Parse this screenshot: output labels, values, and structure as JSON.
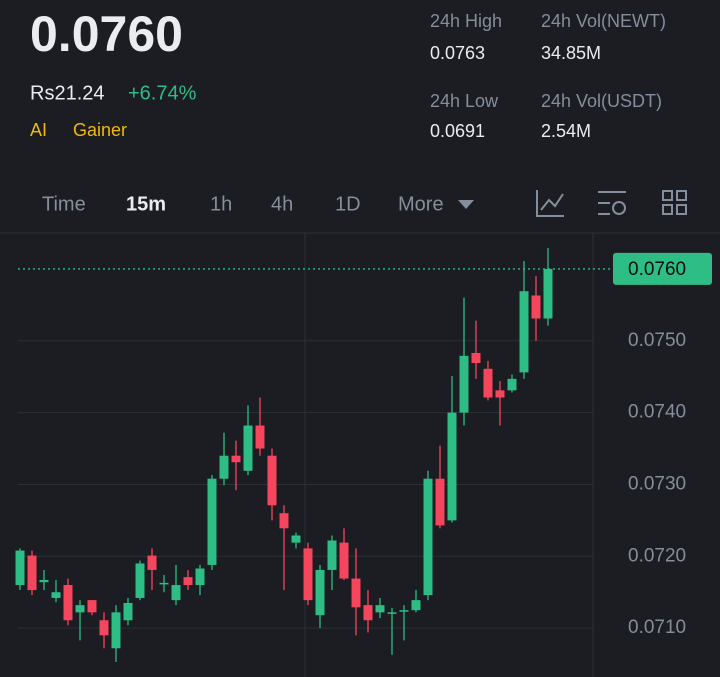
{
  "header": {
    "price": "0.0760",
    "fiat_price": "Rs21.24",
    "change": "+6.74%",
    "tags": [
      "AI",
      "Gainer"
    ],
    "stats": [
      {
        "label": "24h High",
        "value": "0.0763"
      },
      {
        "label": "24h Vol(NEWT)",
        "value": "34.85M"
      },
      {
        "label": "24h Low",
        "value": "0.0691"
      },
      {
        "label": "24h Vol(USDT)",
        "value": "2.54M"
      }
    ]
  },
  "toolbar": {
    "intervals": [
      "Time",
      "15m",
      "1h",
      "4h",
      "1D",
      "More"
    ],
    "active": "15m"
  },
  "chart_data": {
    "type": "candlestick",
    "up_color": "#2ebd85",
    "down_color": "#f6465d",
    "ylim": [
      0.07032,
      0.0765
    ],
    "yticks": [
      {
        "value": 0.075,
        "label": "0.0750"
      },
      {
        "value": 0.074,
        "label": "0.0740"
      },
      {
        "value": 0.073,
        "label": "0.0730"
      },
      {
        "value": 0.072,
        "label": "0.0720"
      },
      {
        "value": 0.071,
        "label": "0.0710"
      }
    ],
    "grid": true,
    "current_price": {
      "value": 0.076,
      "label": "0.0760"
    },
    "open": [
      0.0716,
      0.07201,
      0.07164,
      0.07142,
      0.0716,
      0.07122,
      0.07139,
      0.07111,
      0.07072,
      0.07111,
      0.07142,
      0.07201,
      0.07163,
      0.07139,
      0.07171,
      0.0716,
      0.07188,
      0.07308,
      0.0734,
      0.07319,
      0.07382,
      0.0734,
      0.0726,
      0.07219,
      0.07211,
      0.07118,
      0.07181,
      0.07219,
      0.07169,
      0.07132,
      0.07122,
      0.07122,
      0.07125,
      0.07125,
      0.07146,
      0.07308,
      0.0725,
      0.074,
      0.07483,
      0.07461,
      0.07431,
      0.07431,
      0.07456,
      0.07563,
      0.07531
    ],
    "high": [
      0.07211,
      0.07208,
      0.07181,
      0.07167,
      0.07169,
      0.07139,
      0.07139,
      0.07122,
      0.07132,
      0.07142,
      0.07194,
      0.07211,
      0.07174,
      0.07188,
      0.07181,
      0.07188,
      0.07313,
      0.07372,
      0.07361,
      0.0741,
      0.07421,
      0.0735,
      0.07271,
      0.07233,
      0.07219,
      0.07188,
      0.07229,
      0.07239,
      0.07211,
      0.07153,
      0.07142,
      0.07128,
      0.07132,
      0.07153,
      0.07319,
      0.07354,
      0.07451,
      0.0756,
      0.07528,
      0.07472,
      0.07444,
      0.07453,
      0.07611,
      0.0759,
      0.07629
    ],
    "low": [
      0.07153,
      0.07146,
      0.07153,
      0.07136,
      0.07104,
      0.07083,
      0.07118,
      0.07072,
      0.07053,
      0.07104,
      0.07139,
      0.07153,
      0.0715,
      0.07132,
      0.07153,
      0.07146,
      0.07181,
      0.07299,
      0.07292,
      0.07313,
      0.0734,
      0.0725,
      0.07153,
      0.07211,
      0.07132,
      0.071,
      0.07153,
      0.07167,
      0.0709,
      0.07094,
      0.07114,
      0.07063,
      0.07083,
      0.07122,
      0.07139,
      0.07239,
      0.07247,
      0.07382,
      0.07447,
      0.07417,
      0.07382,
      0.07428,
      0.07447,
      0.075,
      0.07521
    ],
    "close": [
      0.07208,
      0.07153,
      0.07167,
      0.0715,
      0.07111,
      0.07132,
      0.07122,
      0.0709,
      0.07122,
      0.07135,
      0.0719,
      0.07181,
      0.07163,
      0.0716,
      0.0716,
      0.07183,
      0.07308,
      0.0734,
      0.07331,
      0.07382,
      0.0735,
      0.07271,
      0.07239,
      0.07229,
      0.07139,
      0.07181,
      0.07222,
      0.07169,
      0.07129,
      0.07111,
      0.07132,
      0.07122,
      0.07125,
      0.07139,
      0.07308,
      0.07243,
      0.074,
      0.07479,
      0.07469,
      0.07421,
      0.07421,
      0.07447,
      0.07569,
      0.07531,
      0.076
    ]
  }
}
